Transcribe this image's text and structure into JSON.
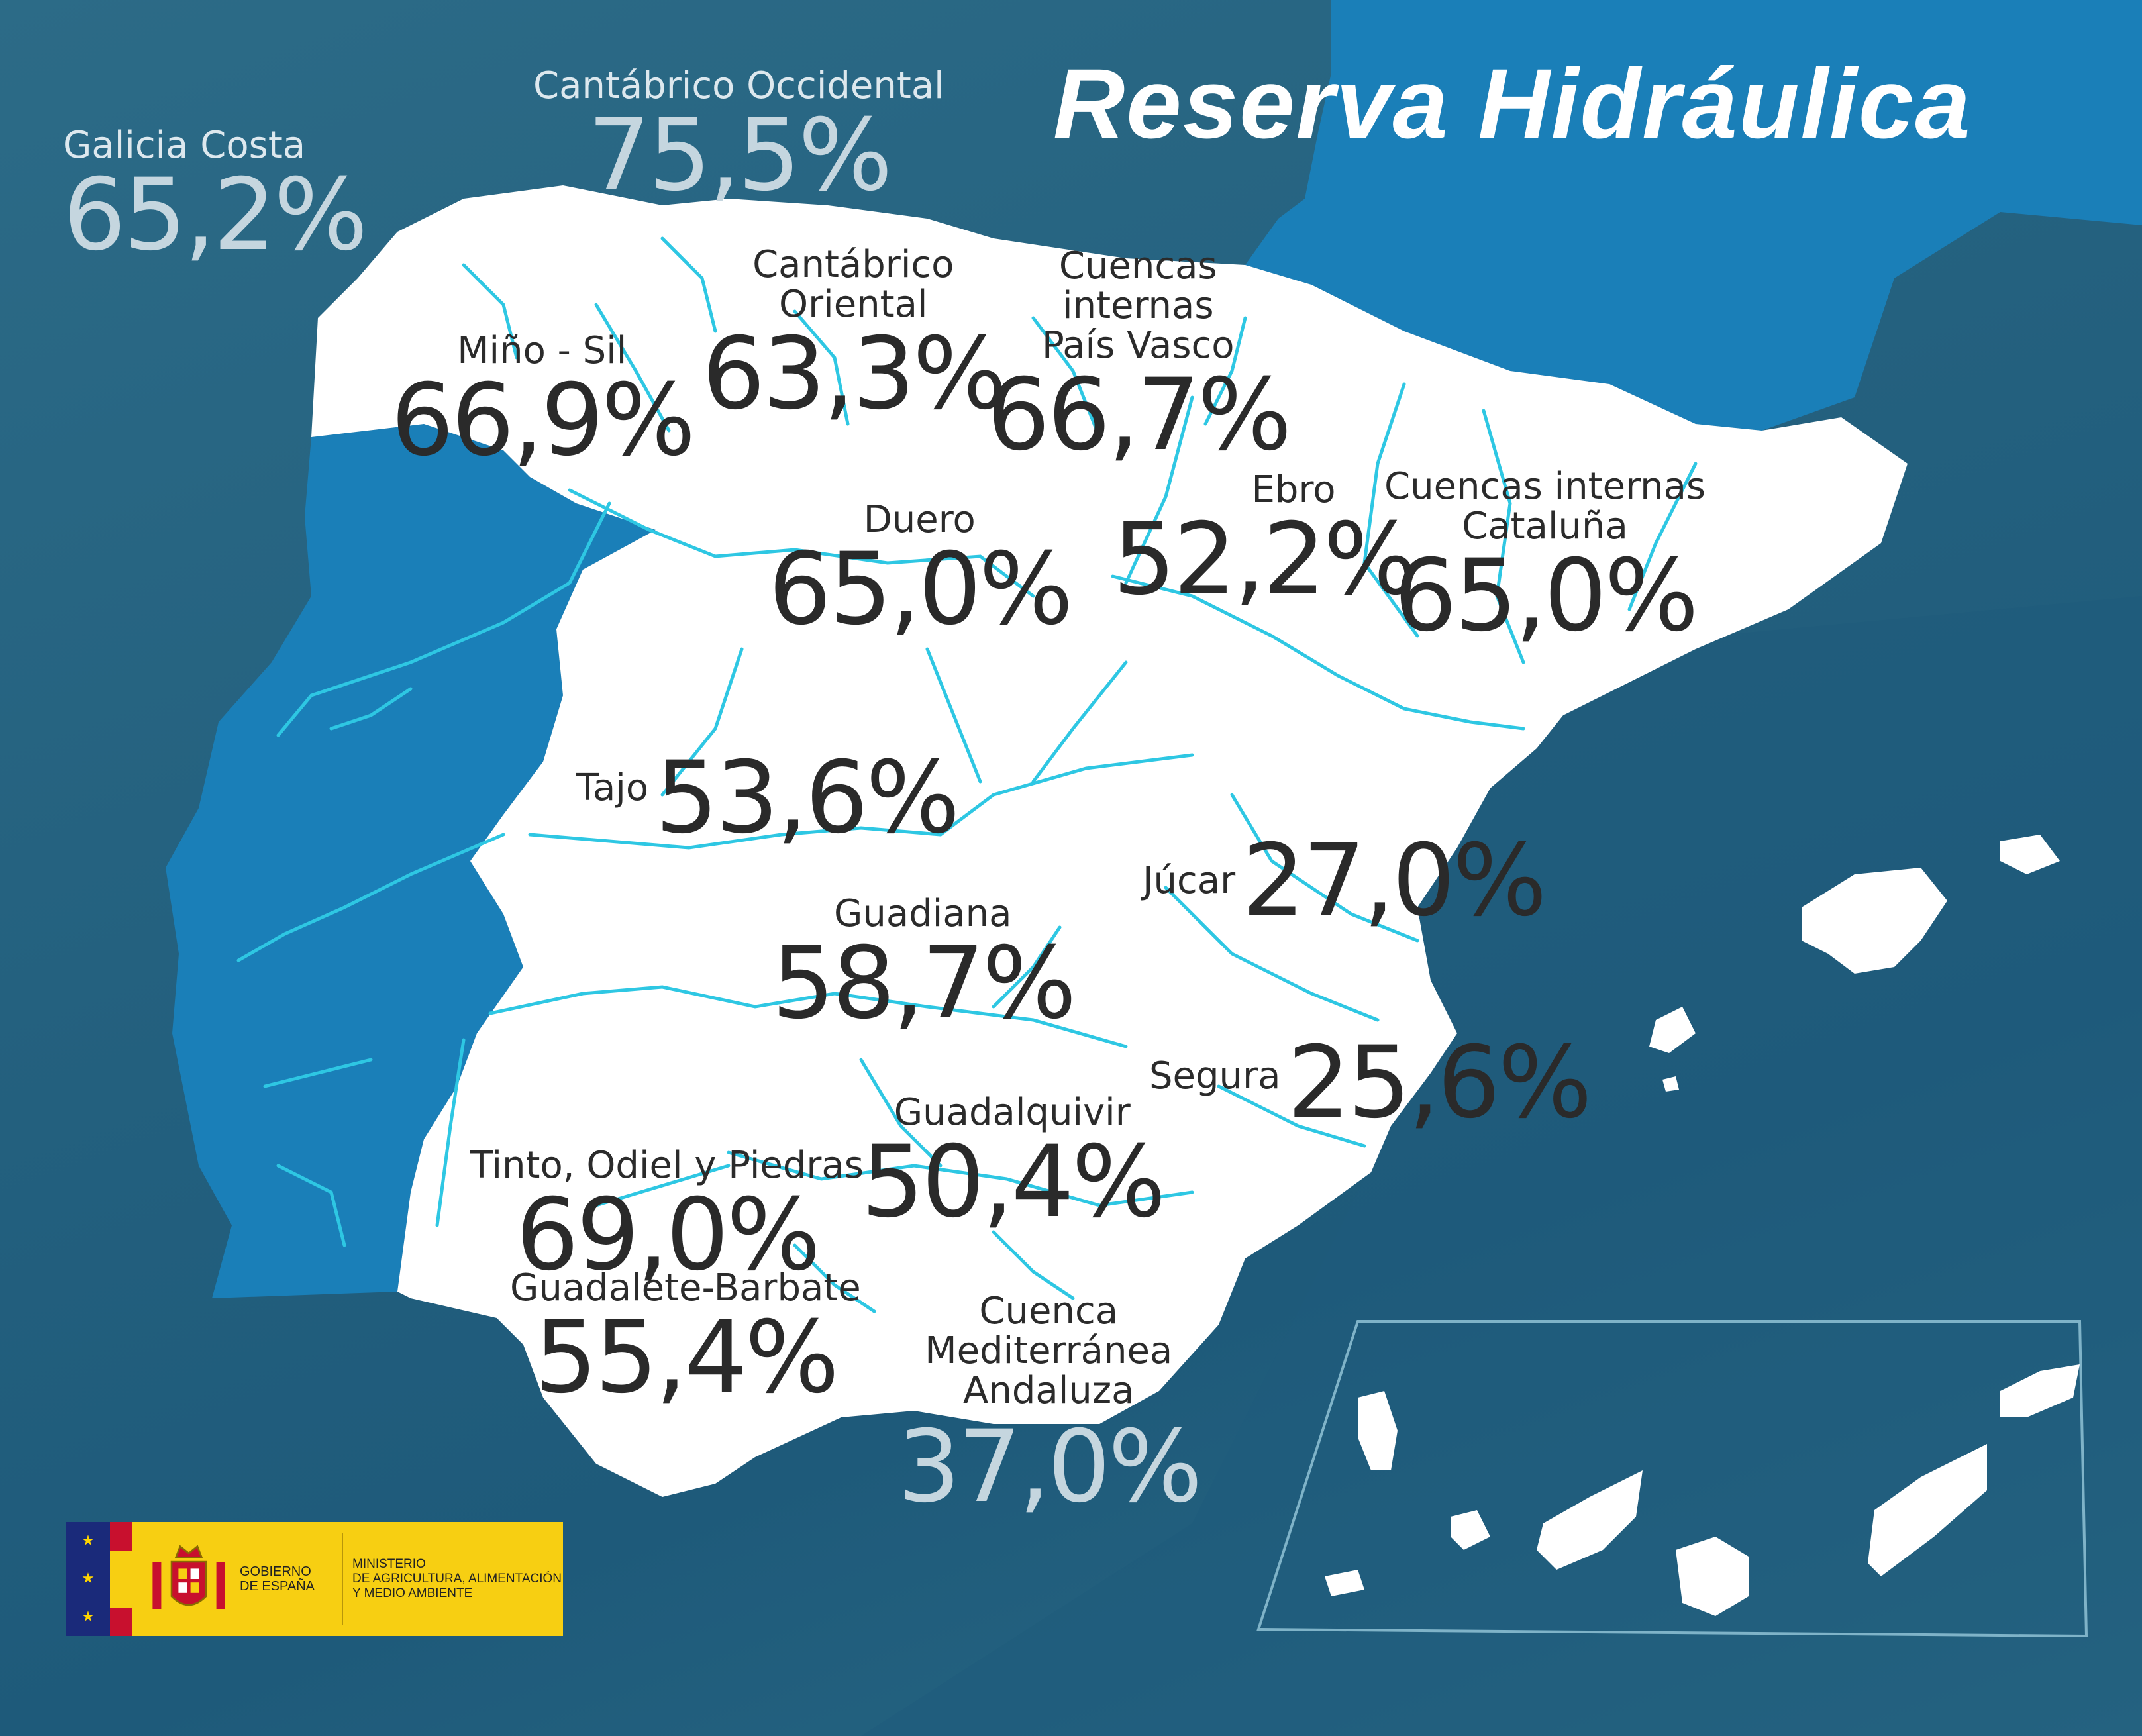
{
  "title": "Reserva Hidráulica",
  "basins": {
    "galicia_costa": {
      "name": "Galicia Costa",
      "value": "65,2%"
    },
    "cantabrico_occidental": {
      "name": "Cantábrico Occidental",
      "value": "75,5%"
    },
    "mino_sil": {
      "name": "Miño - Sil",
      "value": "66,9%"
    },
    "cantabrico_oriental": {
      "name_line1": "Cantábrico",
      "name_line2": "Oriental",
      "value": "63,3%"
    },
    "pais_vasco": {
      "name_line1": "Cuencas",
      "name_line2": "internas",
      "name_line3": "País Vasco",
      "value": "66,7%"
    },
    "duero": {
      "name": "Duero",
      "value": "65,0%"
    },
    "ebro": {
      "name": "Ebro",
      "value": "52,2%"
    },
    "cataluna": {
      "name_line1": "Cuencas internas",
      "name_line2": "Cataluña",
      "value": "65,0%"
    },
    "tajo": {
      "name": "Tajo",
      "value": "53,6%"
    },
    "jucar": {
      "name": "Júcar",
      "value": "27,0%"
    },
    "guadiana": {
      "name": "Guadiana",
      "value": "58,7%"
    },
    "segura": {
      "name": "Segura",
      "value": "25,6%"
    },
    "guadalquivir": {
      "name": "Guadalquivir",
      "value": "50,4%"
    },
    "tinto_odiel": {
      "name": "Tinto, Odiel y Piedras",
      "value": "69,0%"
    },
    "guadalete_barbate": {
      "name": "Guadalete-Barbate",
      "value": "55,4%"
    },
    "mediterranea_andaluza": {
      "name_line1": "Cuenca",
      "name_line2": "Mediterránea",
      "name_line3": "Andaluza",
      "value": "37,0%"
    }
  },
  "logo": {
    "gov_line1": "GOBIERNO",
    "gov_line2": "DE ESPAÑA",
    "ministry_line1": "MINISTERIO",
    "ministry_line2": "DE AGRICULTURA, ALIMENTACIÓN",
    "ministry_line3": "Y MEDIO AMBIENTE"
  },
  "colors": {
    "sea": "#24617f",
    "land": "#ffffff",
    "portugal": "#1a7fb8",
    "france": "#1a7fb8",
    "rivers": "#2ec7e3",
    "logo_yellow": "#f7cf12",
    "logo_red": "#c8102e"
  }
}
